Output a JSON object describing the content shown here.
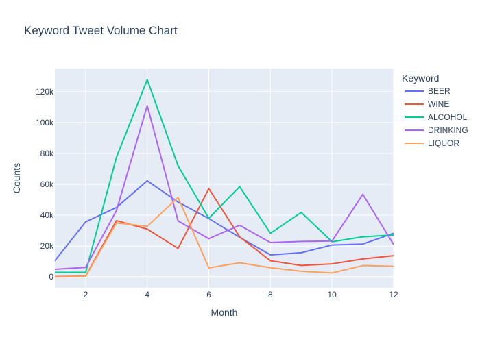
{
  "chart_data": {
    "type": "line",
    "title": "Keyword Tweet Volume Chart",
    "xlabel": "Month",
    "ylabel": "Counts",
    "legend_title": "Keyword",
    "legend_position": "right",
    "grid": true,
    "xlim": [
      1,
      12
    ],
    "ylim": [
      -7000,
      135000
    ],
    "x_ticks": [
      2,
      4,
      6,
      8,
      10,
      12
    ],
    "y_ticks": [
      0,
      20000,
      40000,
      60000,
      80000,
      100000,
      120000
    ],
    "y_tick_labels": [
      "0",
      "20k",
      "40k",
      "60k",
      "80k",
      "100k",
      "120k"
    ],
    "x": [
      1,
      2,
      3,
      4,
      5,
      6,
      7,
      8,
      9,
      10,
      11,
      12
    ],
    "series": [
      {
        "name": "BEER",
        "color": "#636efa",
        "values": [
          10500,
          35700,
          45000,
          62300,
          48500,
          37800,
          25700,
          14300,
          15700,
          20700,
          21300,
          28300
        ]
      },
      {
        "name": "WINE",
        "color": "#EF553B",
        "values": [
          200,
          600,
          36500,
          31000,
          18500,
          57200,
          26000,
          10500,
          7500,
          8500,
          11700,
          13800
        ]
      },
      {
        "name": "ALCOHOL",
        "color": "#00cc96",
        "values": [
          3000,
          3000,
          77500,
          127800,
          72000,
          38000,
          58500,
          28300,
          41800,
          22800,
          26000,
          27200
        ]
      },
      {
        "name": "DRINKING",
        "color": "#ab63fa",
        "values": [
          5000,
          6200,
          43000,
          111000,
          36300,
          24800,
          33500,
          22300,
          23000,
          23300,
          53500,
          21000
        ]
      },
      {
        "name": "LIQUOR",
        "color": "#FFA15A",
        "values": [
          0,
          500,
          35000,
          32800,
          51500,
          5900,
          9200,
          6000,
          3700,
          2600,
          7400,
          6900
        ]
      }
    ]
  }
}
